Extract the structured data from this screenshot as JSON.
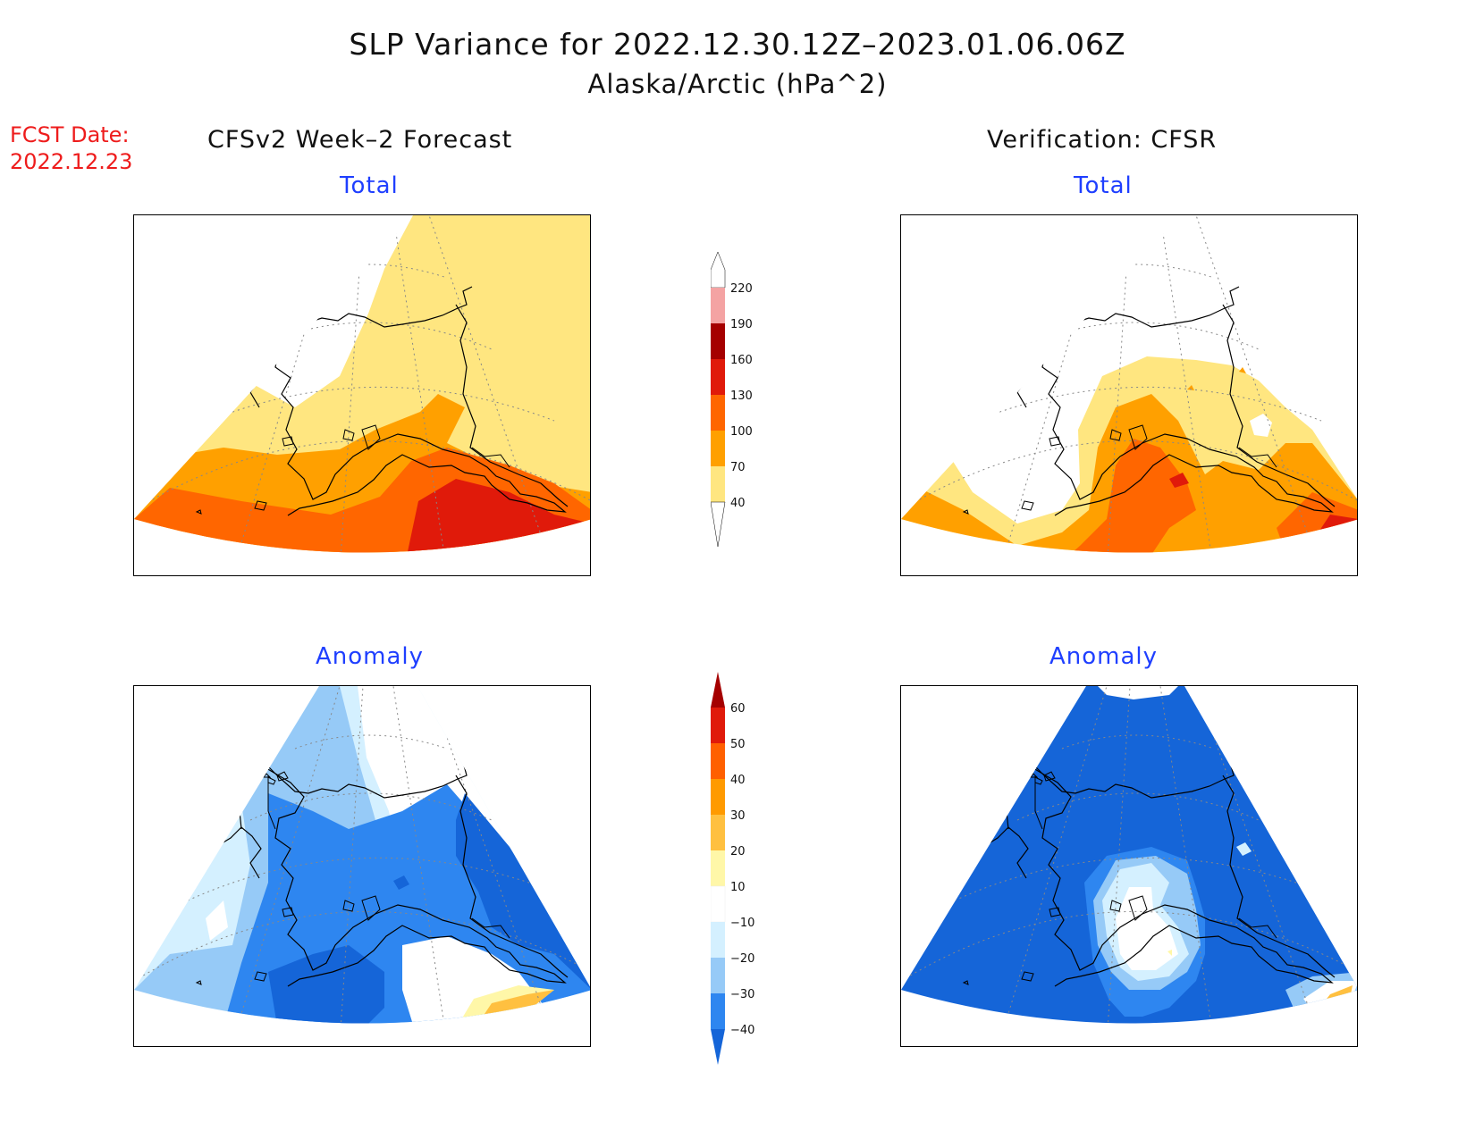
{
  "header": {
    "title": "SLP Variance for 2022.12.30.12Z–2023.01.06.06Z",
    "subtitle": "Alaska/Arctic (hPa^2)",
    "fcst_date_label": "FCST Date:",
    "fcst_date_value": "2022.12.23"
  },
  "columns": {
    "left": "CFSv2 Week–2 Forecast",
    "right": "Verification: CFSR"
  },
  "panels": {
    "top_left": "Total",
    "top_right": "Total",
    "bottom_left": "Anomaly",
    "bottom_right": "Anomaly"
  },
  "colorbars": {
    "total": {
      "levels": [
        "40",
        "70",
        "100",
        "130",
        "160",
        "190",
        "220"
      ],
      "colors": [
        "#ffe680",
        "#ffa000",
        "#ff6600",
        "#e01a0a",
        "#a50000",
        "#f4a3a3",
        "#fde0e0",
        "#ffffff"
      ]
    },
    "anomaly": {
      "levels": [
        "−40",
        "−30",
        "−20",
        "−10",
        "10",
        "20",
        "30",
        "40",
        "50",
        "60"
      ],
      "colors": [
        "#1565d8",
        "#2e86f0",
        "#96caf7",
        "#d4f0ff",
        "#ffffff",
        "#fff7a8",
        "#ffc040",
        "#ff9a00",
        "#ff6000",
        "#e01a0a",
        "#a50000"
      ]
    }
  }
}
